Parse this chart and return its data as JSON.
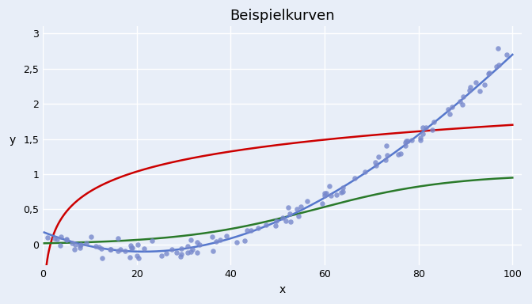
{
  "title": "Beispielkurven",
  "xlabel": "x",
  "ylabel": "y",
  "xlim": [
    0,
    102
  ],
  "ylim": [
    -0.3,
    3.1
  ],
  "yticks": [
    0,
    0.5,
    1,
    1.5,
    2,
    2.5,
    3
  ],
  "xticks": [
    0,
    20,
    40,
    60,
    80,
    100
  ],
  "background_color": "#e8eef8",
  "grid_color": "#ffffff",
  "log_color": "#cc0000",
  "logistic_color": "#2a7a2a",
  "poly_color": "#5577cc",
  "scatter_color": "#7788cc",
  "log_a": 0.4128,
  "log_b": -0.2,
  "logistic_L": 1.0,
  "logistic_k": 0.07,
  "logistic_x0": 58,
  "poly_a": 2.8e-05,
  "poly_b": -0.0035,
  "poly_c": -0.005,
  "poly_d": 0.2,
  "noise_scale": 0.07,
  "n_points": 120,
  "seed": 42,
  "line_width": 1.8,
  "scatter_size": 22,
  "scatter_alpha": 0.8,
  "title_fontsize": 13,
  "label_fontsize": 10
}
